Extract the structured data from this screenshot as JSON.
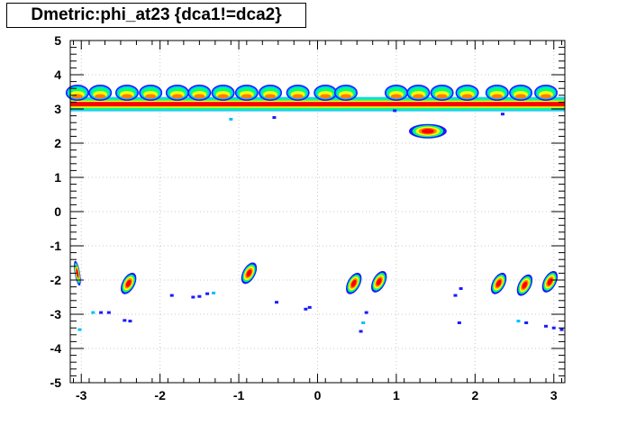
{
  "chart_data": {
    "type": "heatmap",
    "title": "Dmetric:phi_at23 {dca1!=dca2}",
    "xlabel": "",
    "ylabel": "",
    "xlim": [
      -3.14,
      3.14
    ],
    "ylim": [
      -5,
      5
    ],
    "grid": true,
    "x_ticks": [
      -3,
      -2,
      -1,
      0,
      1,
      2,
      3
    ],
    "y_ticks": [
      -5,
      -4,
      -3,
      -2,
      -1,
      0,
      1,
      2,
      3,
      4,
      5
    ],
    "x_tick_labels": [
      "-3",
      "-2",
      "-1",
      "0",
      "1",
      "2",
      "3"
    ],
    "y_tick_labels": [
      "-5",
      "-4",
      "-3",
      "-2",
      "-1",
      "0",
      "1",
      "2",
      "3",
      "4",
      "5"
    ],
    "palette": [
      "#1b1bff",
      "#00bfff",
      "#00ff80",
      "#ffff00",
      "#ff8000",
      "#ff0000"
    ],
    "band": {
      "y": 3.14,
      "x_from": -3.14,
      "x_to": 3.14
    },
    "upper_blobs_x": [
      -3.05,
      -2.76,
      -2.42,
      -2.12,
      -1.78,
      -1.5,
      -1.2,
      -0.9,
      -0.6,
      -0.25,
      0.1,
      0.36,
      1.0,
      1.28,
      1.58,
      1.9,
      2.28,
      2.58,
      2.9
    ],
    "upper_blob_y": 3.5,
    "clusters": [
      {
        "x": 1.4,
        "y": 2.35
      },
      {
        "x": -3.05,
        "y": -1.8
      },
      {
        "x": -2.4,
        "y": -2.1
      },
      {
        "x": -0.87,
        "y": -1.8
      },
      {
        "x": 0.46,
        "y": -2.1
      },
      {
        "x": 0.78,
        "y": -2.05
      },
      {
        "x": 2.3,
        "y": -2.1
      },
      {
        "x": 2.63,
        "y": -2.15
      },
      {
        "x": 2.95,
        "y": -2.05
      }
    ],
    "scatter_points": [
      {
        "x": -2.85,
        "y": -2.95
      },
      {
        "x": -2.75,
        "y": -2.95
      },
      {
        "x": -2.65,
        "y": -2.95
      },
      {
        "x": -2.45,
        "y": -3.18
      },
      {
        "x": -2.38,
        "y": -3.2
      },
      {
        "x": -3.02,
        "y": -3.45
      },
      {
        "x": -1.85,
        "y": -2.45
      },
      {
        "x": -1.58,
        "y": -2.5
      },
      {
        "x": -1.5,
        "y": -2.48
      },
      {
        "x": -1.4,
        "y": -2.4
      },
      {
        "x": -1.32,
        "y": -2.38
      },
      {
        "x": -0.52,
        "y": -2.65
      },
      {
        "x": -0.15,
        "y": -2.85
      },
      {
        "x": -0.1,
        "y": -2.8
      },
      {
        "x": 0.62,
        "y": -2.95
      },
      {
        "x": 0.58,
        "y": -3.25
      },
      {
        "x": 0.55,
        "y": -3.5
      },
      {
        "x": 1.75,
        "y": -2.45
      },
      {
        "x": 1.82,
        "y": -2.25
      },
      {
        "x": 1.8,
        "y": -3.25
      },
      {
        "x": 2.55,
        "y": -3.2
      },
      {
        "x": 2.65,
        "y": -3.25
      },
      {
        "x": 2.9,
        "y": -3.35
      },
      {
        "x": 3.0,
        "y": -3.4
      },
      {
        "x": 3.1,
        "y": -3.45
      },
      {
        "x": -1.1,
        "y": 2.7
      },
      {
        "x": -0.55,
        "y": 2.75
      },
      {
        "x": 0.98,
        "y": 2.95
      },
      {
        "x": 2.35,
        "y": 2.85
      }
    ]
  }
}
